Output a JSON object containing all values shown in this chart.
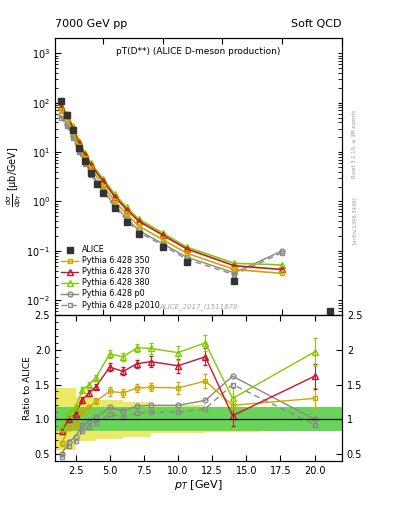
{
  "title_top": "7000 GeV pp",
  "title_right": "Soft QCD",
  "plot_title": "pT(D**) (ALICE D-meson production)",
  "ylabel_main": "d#sigma/dp_{T} [#mub/GeV]",
  "ylabel_ratio": "Ratio to ALICE",
  "xlabel": "p_{T} [GeV]",
  "watermark": "ALICE_2017_I1511870",
  "rivet_label": "Rivet 3.1.10, ≥ 3M events",
  "arxiv_label": "[arXiv:1306.3436]",
  "alice_pt": [
    1.5,
    2.0,
    2.5,
    3.0,
    3.5,
    4.0,
    4.5,
    5.0,
    6.0,
    7.0,
    8.0,
    10.0,
    12.0,
    16.0,
    24.0
  ],
  "alice_val": [
    110,
    55,
    28,
    12,
    6.5,
    3.8,
    2.3,
    1.5,
    0.75,
    0.38,
    0.22,
    0.12,
    0.06,
    0.025,
    0.006
  ],
  "alice_color": "#333333",
  "p350_pt": [
    1.5,
    2.0,
    2.5,
    3.0,
    3.5,
    4.0,
    5.0,
    6.0,
    7.0,
    8.0,
    10.0,
    12.0,
    16.0,
    20.0
  ],
  "p350_val": [
    70,
    47,
    26,
    13,
    7.5,
    4.7,
    2.1,
    1.0,
    0.55,
    0.32,
    0.17,
    0.09,
    0.042,
    0.035
  ],
  "p350_color": "#c8aa00",
  "p370_pt": [
    1.5,
    2.0,
    2.5,
    3.0,
    3.5,
    4.0,
    5.0,
    6.0,
    7.0,
    8.0,
    10.0,
    12.0,
    16.0,
    20.0
  ],
  "p370_val": [
    82,
    55,
    30,
    15,
    8.8,
    5.5,
    2.6,
    1.25,
    0.68,
    0.4,
    0.21,
    0.11,
    0.05,
    0.042
  ],
  "p370_color": "#cc1428",
  "p380_pt": [
    1.5,
    2.0,
    2.5,
    3.0,
    3.5,
    4.0,
    5.0,
    6.0,
    7.0,
    8.0,
    10.0,
    12.0,
    16.0,
    20.0
  ],
  "p380_val": [
    88,
    60,
    33,
    17,
    9.5,
    6.0,
    2.9,
    1.4,
    0.76,
    0.44,
    0.23,
    0.12,
    0.056,
    0.052
  ],
  "p380_color": "#80cc00",
  "pp0_pt": [
    1.5,
    2.0,
    2.5,
    3.0,
    3.5,
    4.0,
    5.0,
    6.0,
    7.0,
    8.0,
    10.0,
    12.0,
    16.0,
    20.0
  ],
  "pp0_val": [
    55,
    37,
    21,
    11,
    6.2,
    3.8,
    1.75,
    0.83,
    0.45,
    0.26,
    0.14,
    0.075,
    0.036,
    0.1
  ],
  "pp0_color": "#888888",
  "pp2010_pt": [
    1.5,
    2.0,
    2.5,
    3.0,
    3.5,
    4.0,
    5.0,
    6.0,
    7.0,
    8.0,
    10.0,
    12.0,
    16.0,
    20.0
  ],
  "pp2010_val": [
    50,
    34,
    19,
    10,
    5.7,
    3.5,
    1.6,
    0.76,
    0.41,
    0.24,
    0.13,
    0.068,
    0.033,
    0.092
  ],
  "pp2010_color": "#888888",
  "ratio_pt": [
    1.5,
    2.0,
    2.5,
    3.0,
    3.5,
    4.0,
    5.0,
    6.0,
    7.0,
    8.0,
    10.0,
    12.0,
    14.0,
    20.0
  ],
  "ratio_p350": [
    0.65,
    0.88,
    0.92,
    1.1,
    1.17,
    1.26,
    1.4,
    1.38,
    1.45,
    1.46,
    1.45,
    1.55,
    1.2,
    1.3
  ],
  "ratio_p370": [
    0.83,
    1.0,
    1.07,
    1.28,
    1.38,
    1.47,
    1.75,
    1.69,
    1.8,
    1.83,
    1.77,
    1.9,
    1.05,
    1.62
  ],
  "ratio_p380": [
    0.88,
    1.08,
    1.17,
    1.42,
    1.5,
    1.6,
    1.94,
    1.9,
    2.03,
    2.02,
    1.96,
    2.1,
    1.3,
    1.97
  ],
  "ratio_pp0": [
    0.5,
    0.67,
    0.75,
    0.91,
    0.97,
    1.03,
    1.17,
    1.12,
    1.19,
    1.2,
    1.2,
    1.27,
    1.62,
    1.0
  ],
  "ratio_pp2010": [
    0.45,
    0.62,
    0.68,
    0.83,
    0.89,
    0.95,
    1.07,
    1.03,
    1.09,
    1.1,
    1.1,
    1.15,
    1.5,
    0.92
  ],
  "err_p350": [
    0.04,
    0.04,
    0.04,
    0.04,
    0.04,
    0.04,
    0.06,
    0.06,
    0.06,
    0.06,
    0.08,
    0.1,
    0.12,
    0.15
  ],
  "err_p370": [
    0.04,
    0.04,
    0.04,
    0.04,
    0.04,
    0.04,
    0.06,
    0.06,
    0.06,
    0.08,
    0.1,
    0.12,
    0.15,
    0.18
  ],
  "err_p380": [
    0.04,
    0.04,
    0.04,
    0.04,
    0.04,
    0.04,
    0.06,
    0.06,
    0.06,
    0.08,
    0.1,
    0.12,
    0.15,
    0.2
  ],
  "band_pt_edges": [
    1.0,
    2.5,
    4.0,
    6.0,
    8.0,
    12.0,
    16.0,
    22.0
  ],
  "band_inner_lo": [
    0.83,
    0.83,
    0.83,
    0.83,
    0.83,
    0.83,
    0.83
  ],
  "band_inner_hi": [
    1.17,
    1.17,
    1.17,
    1.17,
    1.17,
    1.17,
    1.17
  ],
  "band_outer_lo": [
    0.55,
    0.68,
    0.72,
    0.75,
    0.8,
    0.82,
    0.83
  ],
  "band_outer_hi": [
    1.45,
    1.32,
    1.28,
    1.25,
    1.2,
    1.18,
    1.17
  ],
  "band_inner_color": "#33cc55",
  "band_outer_color": "#dddd00",
  "ylim_main": [
    0.005,
    2000
  ],
  "ylim_ratio": [
    0.4,
    2.5
  ],
  "xlim_main": [
    1.0,
    25
  ],
  "xlim_ratio": [
    1.0,
    22
  ]
}
